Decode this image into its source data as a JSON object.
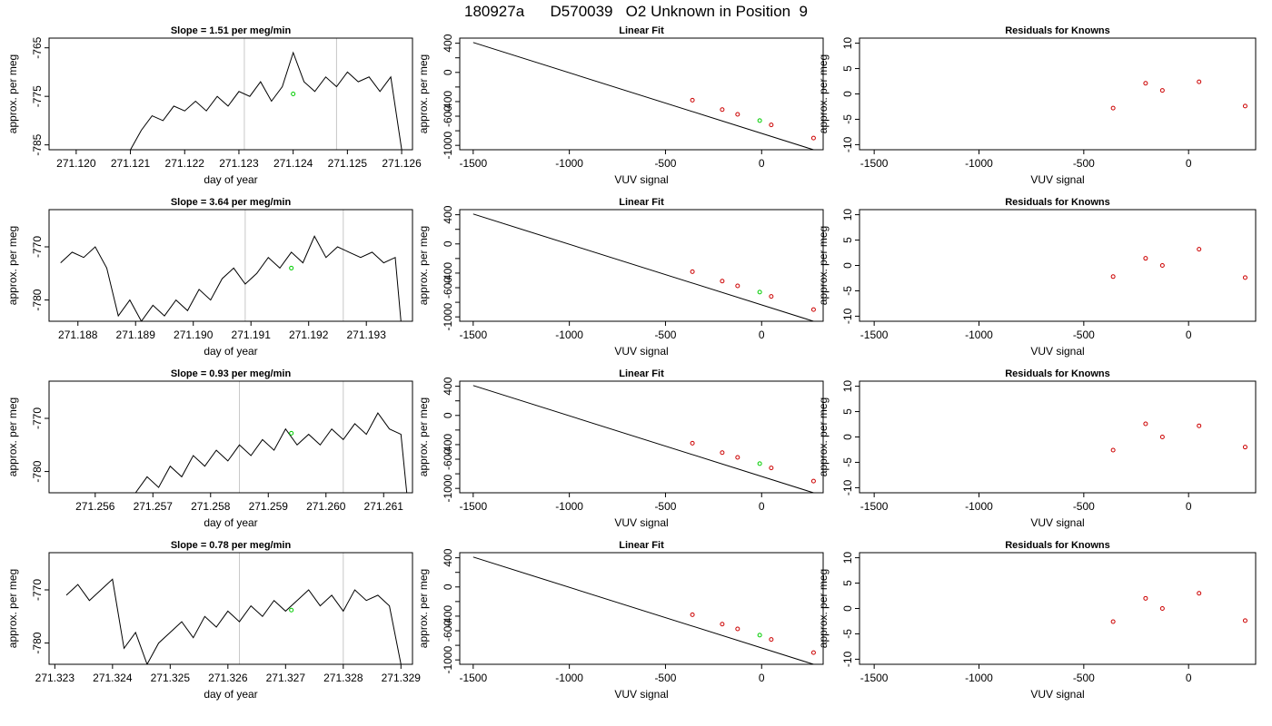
{
  "header": {
    "title": "180927a      D570039   O2 Unknown in Position  9"
  },
  "colors": {
    "trace": "#000000",
    "marker_unknown": "#00cc00",
    "marker_known": "#cc0000",
    "cycle_line": "#c8c8c8"
  },
  "chart_data": [
    {
      "type": "line",
      "title": "Slope =  1.51  per meg/min",
      "xlabel": "day of year",
      "ylabel": "approx. per meg",
      "xlim": [
        271.1195,
        271.1262
      ],
      "ylim": [
        -786,
        -763
      ],
      "xticks": [
        271.12,
        271.121,
        271.122,
        271.123,
        271.124,
        271.125,
        271.126
      ],
      "xtick_labels": [
        "271.120",
        "271.121",
        "271.122",
        "271.123",
        "271.124",
        "271.125",
        "271.126"
      ],
      "yticks": [
        -785,
        -775,
        -765
      ],
      "ytick_labels": [
        "-785",
        "-775",
        "-765"
      ],
      "vlines": [
        271.1231,
        271.1248
      ],
      "series": [
        {
          "x": [
            271.121,
            271.1212,
            271.1214,
            271.1216,
            271.1218,
            271.122,
            271.1222,
            271.1224,
            271.1226,
            271.1228,
            271.123,
            271.1232,
            271.1234,
            271.1236,
            271.1238,
            271.124,
            271.1242,
            271.1244,
            271.1246,
            271.1248,
            271.125,
            271.1252,
            271.1254,
            271.1256,
            271.1258,
            271.126
          ],
          "y": [
            -786,
            -782,
            -779,
            -780,
            -777,
            -778,
            -776,
            -778,
            -775,
            -777,
            -774,
            -775,
            -772,
            -776,
            -773,
            -766,
            -772,
            -774,
            -771,
            -773,
            -770,
            -772,
            -771,
            -774,
            -771,
            -786
          ]
        }
      ],
      "marker": {
        "x": 271.124,
        "y": -774.5
      }
    },
    {
      "type": "scatter",
      "title": "Linear Fit",
      "xlabel": "VUV signal",
      "ylabel": "approx. per meg",
      "xlim": [
        -1570,
        320
      ],
      "ylim": [
        -1060,
        470
      ],
      "xticks": [
        -1500,
        -1000,
        -500,
        0
      ],
      "xtick_labels": [
        "-1500",
        "-1000",
        "-500",
        "0"
      ],
      "yticks": [
        -1000,
        -800,
        -600,
        -400,
        -200,
        0,
        200,
        400
      ],
      "ytick_labels": [
        "-1000",
        "",
        "-600",
        "-400",
        "",
        "0",
        "",
        "400"
      ],
      "fit": {
        "x": [
          -1500,
          270
        ],
        "y": [
          410,
          -1060
        ]
      },
      "knowns": {
        "x": [
          -360,
          -205,
          -125,
          50,
          270
        ],
        "y": [
          -380,
          -510,
          -575,
          -720,
          -900
        ]
      },
      "unknown": {
        "x": -10,
        "y": -660
      }
    },
    {
      "type": "scatter",
      "title": "Residuals for Knowns",
      "xlabel": "VUV signal",
      "ylabel": "approx. per meg",
      "xlim": [
        -1570,
        320
      ],
      "ylim": [
        -11,
        11
      ],
      "xticks": [
        -1500,
        -1000,
        -500,
        0
      ],
      "xtick_labels": [
        "-1500",
        "-1000",
        "-500",
        "0"
      ],
      "yticks": [
        -10,
        -5,
        0,
        5,
        10
      ],
      "ytick_labels": [
        "-10",
        "-5",
        "0",
        "5",
        "10"
      ],
      "points": {
        "x": [
          -360,
          -205,
          -125,
          50,
          270
        ],
        "y": [
          -2.8,
          2.1,
          0.7,
          2.4,
          -2.4
        ]
      }
    },
    {
      "type": "line",
      "title": "Slope =  3.64  per meg/min",
      "xlabel": "day of year",
      "ylabel": "approx. per meg",
      "xlim": [
        271.1875,
        271.1938
      ],
      "ylim": [
        -784,
        -763
      ],
      "xticks": [
        271.188,
        271.189,
        271.19,
        271.191,
        271.192,
        271.193
      ],
      "xtick_labels": [
        "271.188",
        "271.189",
        "271.190",
        "271.191",
        "271.192",
        "271.193"
      ],
      "yticks": [
        -780,
        -770
      ],
      "ytick_labels": [
        "-780",
        "-770"
      ],
      "vlines": [
        271.1909,
        271.1926
      ],
      "series": [
        {
          "x": [
            271.1877,
            271.1879,
            271.1881,
            271.1883,
            271.1885,
            271.1887,
            271.1889,
            271.1891,
            271.1893,
            271.1895,
            271.1897,
            271.1899,
            271.1901,
            271.1903,
            271.1905,
            271.1907,
            271.1909,
            271.1911,
            271.1913,
            271.1915,
            271.1917,
            271.1919,
            271.1921,
            271.1923,
            271.1925,
            271.1927,
            271.1929,
            271.1931,
            271.1933,
            271.1935,
            271.1936
          ],
          "y": [
            -773,
            -771,
            -772,
            -770,
            -774,
            -783,
            -780,
            -784,
            -781,
            -783,
            -780,
            -782,
            -778,
            -780,
            -776,
            -774,
            -777,
            -775,
            -772,
            -774,
            -771,
            -773,
            -768,
            -772,
            -770,
            -771,
            -772,
            -771,
            -773,
            -772,
            -784
          ]
        }
      ],
      "marker": {
        "x": 271.1917,
        "y": -774.0
      }
    },
    {
      "type": "scatter",
      "title": "Linear Fit",
      "xlabel": "VUV signal",
      "ylabel": "approx. per meg",
      "xlim": [
        -1570,
        320
      ],
      "ylim": [
        -1060,
        470
      ],
      "xticks": [
        -1500,
        -1000,
        -500,
        0
      ],
      "xtick_labels": [
        "-1500",
        "-1000",
        "-500",
        "0"
      ],
      "yticks": [
        -1000,
        -800,
        -600,
        -400,
        -200,
        0,
        200,
        400
      ],
      "ytick_labels": [
        "-1000",
        "",
        "-600",
        "-400",
        "",
        "0",
        "",
        "400"
      ],
      "fit": {
        "x": [
          -1500,
          270
        ],
        "y": [
          410,
          -1060
        ]
      },
      "knowns": {
        "x": [
          -360,
          -205,
          -125,
          50,
          270
        ],
        "y": [
          -380,
          -510,
          -575,
          -720,
          -900
        ]
      },
      "unknown": {
        "x": -10,
        "y": -660
      }
    },
    {
      "type": "scatter",
      "title": "Residuals for Knowns",
      "xlabel": "VUV signal",
      "ylabel": "approx. per meg",
      "xlim": [
        -1570,
        320
      ],
      "ylim": [
        -11,
        11
      ],
      "xticks": [
        -1500,
        -1000,
        -500,
        0
      ],
      "xtick_labels": [
        "-1500",
        "-1000",
        "-500",
        "0"
      ],
      "yticks": [
        -10,
        -5,
        0,
        5,
        10
      ],
      "ytick_labels": [
        "-10",
        "-5",
        "0",
        "5",
        "10"
      ],
      "points": {
        "x": [
          -360,
          -205,
          -125,
          50,
          270
        ],
        "y": [
          -2.2,
          1.4,
          0.0,
          3.2,
          -2.4
        ]
      }
    },
    {
      "type": "line",
      "title": "Slope =  0.93  per meg/min",
      "xlabel": "day of year",
      "ylabel": "approx. per meg",
      "xlim": [
        271.2552,
        271.2615
      ],
      "ylim": [
        -784,
        -763
      ],
      "xticks": [
        271.256,
        271.257,
        271.258,
        271.259,
        271.26,
        271.261
      ],
      "xtick_labels": [
        "271.256",
        "271.257",
        "271.258",
        "271.259",
        "271.260",
        "271.261"
      ],
      "yticks": [
        -780,
        -770
      ],
      "ytick_labels": [
        "-780",
        "-770"
      ],
      "vlines": [
        271.2585,
        271.2603
      ],
      "series": [
        {
          "x": [
            271.2567,
            271.2569,
            271.2571,
            271.2573,
            271.2575,
            271.2577,
            271.2579,
            271.2581,
            271.2583,
            271.2585,
            271.2587,
            271.2589,
            271.2591,
            271.2593,
            271.2595,
            271.2597,
            271.2599,
            271.2601,
            271.2603,
            271.2605,
            271.2607,
            271.2609,
            271.2611,
            271.2613,
            271.2614
          ],
          "y": [
            -784,
            -781,
            -783,
            -779,
            -781,
            -777,
            -779,
            -776,
            -778,
            -775,
            -777,
            -774,
            -776,
            -772,
            -775,
            -773,
            -775,
            -772,
            -774,
            -771,
            -773,
            -769,
            -772,
            -773,
            -784
          ]
        }
      ],
      "marker": {
        "x": 271.2594,
        "y": -772.8
      }
    },
    {
      "type": "scatter",
      "title": "Linear Fit",
      "xlabel": "VUV signal",
      "ylabel": "approx. per meg",
      "xlim": [
        -1570,
        320
      ],
      "ylim": [
        -1060,
        470
      ],
      "xticks": [
        -1500,
        -1000,
        -500,
        0
      ],
      "xtick_labels": [
        "-1500",
        "-1000",
        "-500",
        "0"
      ],
      "yticks": [
        -1000,
        -800,
        -600,
        -400,
        -200,
        0,
        200,
        400
      ],
      "ytick_labels": [
        "-1000",
        "",
        "-600",
        "-400",
        "",
        "0",
        "",
        "400"
      ],
      "fit": {
        "x": [
          -1500,
          270
        ],
        "y": [
          410,
          -1060
        ]
      },
      "knowns": {
        "x": [
          -360,
          -205,
          -125,
          50,
          270
        ],
        "y": [
          -380,
          -510,
          -575,
          -720,
          -900
        ]
      },
      "unknown": {
        "x": -10,
        "y": -660
      }
    },
    {
      "type": "scatter",
      "title": "Residuals for Knowns",
      "xlabel": "VUV signal",
      "ylabel": "approx. per meg",
      "xlim": [
        -1570,
        320
      ],
      "ylim": [
        -11,
        11
      ],
      "xticks": [
        -1500,
        -1000,
        -500,
        0
      ],
      "xtick_labels": [
        "-1500",
        "-1000",
        "-500",
        "0"
      ],
      "yticks": [
        -10,
        -5,
        0,
        5,
        10
      ],
      "ytick_labels": [
        "-10",
        "-5",
        "0",
        "5",
        "10"
      ],
      "points": {
        "x": [
          -360,
          -205,
          -125,
          50,
          270
        ],
        "y": [
          -2.6,
          2.6,
          0.0,
          2.2,
          -2.0
        ]
      }
    },
    {
      "type": "line",
      "title": "Slope =  0.78  per meg/min",
      "xlabel": "day of year",
      "ylabel": "approx. per meg",
      "xlim": [
        271.3229,
        271.3292
      ],
      "ylim": [
        -784,
        -763
      ],
      "xticks": [
        271.323,
        271.324,
        271.325,
        271.326,
        271.327,
        271.328,
        271.329
      ],
      "xtick_labels": [
        "271.323",
        "271.324",
        "271.325",
        "271.326",
        "271.327",
        "271.328",
        "271.329"
      ],
      "yticks": [
        -780,
        -770
      ],
      "ytick_labels": [
        "-780",
        "-770"
      ],
      "vlines": [
        271.3262,
        271.328
      ],
      "series": [
        {
          "x": [
            271.3232,
            271.3234,
            271.3236,
            271.3238,
            271.324,
            271.3242,
            271.3244,
            271.3246,
            271.3248,
            271.325,
            271.3252,
            271.3254,
            271.3256,
            271.3258,
            271.326,
            271.3262,
            271.3264,
            271.3266,
            271.3268,
            271.327,
            271.3272,
            271.3274,
            271.3276,
            271.3278,
            271.328,
            271.3282,
            271.3284,
            271.3286,
            271.3288,
            271.329
          ],
          "y": [
            -771,
            -769,
            -772,
            -770,
            -768,
            -781,
            -778,
            -784,
            -780,
            -778,
            -776,
            -779,
            -775,
            -777,
            -774,
            -776,
            -773,
            -775,
            -772,
            -774,
            -772,
            -770,
            -773,
            -771,
            -774,
            -770,
            -772,
            -771,
            -773,
            -784
          ]
        }
      ],
      "marker": {
        "x": 271.3271,
        "y": -773.8
      }
    },
    {
      "type": "scatter",
      "title": "Linear Fit",
      "xlabel": "VUV signal",
      "ylabel": "approx. per meg",
      "xlim": [
        -1570,
        320
      ],
      "ylim": [
        -1060,
        470
      ],
      "xticks": [
        -1500,
        -1000,
        -500,
        0
      ],
      "xtick_labels": [
        "-1500",
        "-1000",
        "-500",
        "0"
      ],
      "yticks": [
        -1000,
        -800,
        -600,
        -400,
        -200,
        0,
        200,
        400
      ],
      "ytick_labels": [
        "-1000",
        "",
        "-600",
        "-400",
        "",
        "0",
        "",
        "400"
      ],
      "fit": {
        "x": [
          -1500,
          270
        ],
        "y": [
          410,
          -1060
        ]
      },
      "knowns": {
        "x": [
          -360,
          -205,
          -125,
          50,
          270
        ],
        "y": [
          -380,
          -510,
          -575,
          -720,
          -900
        ]
      },
      "unknown": {
        "x": -10,
        "y": -660
      }
    },
    {
      "type": "scatter",
      "title": "Residuals for Knowns",
      "xlabel": "VUV signal",
      "ylabel": "approx. per meg",
      "xlim": [
        -1570,
        320
      ],
      "ylim": [
        -11,
        11
      ],
      "xticks": [
        -1500,
        -1000,
        -500,
        0
      ],
      "xtick_labels": [
        "-1500",
        "-1000",
        "-500",
        "0"
      ],
      "yticks": [
        -10,
        -5,
        0,
        5,
        10
      ],
      "ytick_labels": [
        "-10",
        "-5",
        "0",
        "5",
        "10"
      ],
      "points": {
        "x": [
          -360,
          -205,
          -125,
          50,
          270
        ],
        "y": [
          -2.6,
          2.0,
          0.0,
          3.0,
          -2.4
        ]
      }
    }
  ]
}
